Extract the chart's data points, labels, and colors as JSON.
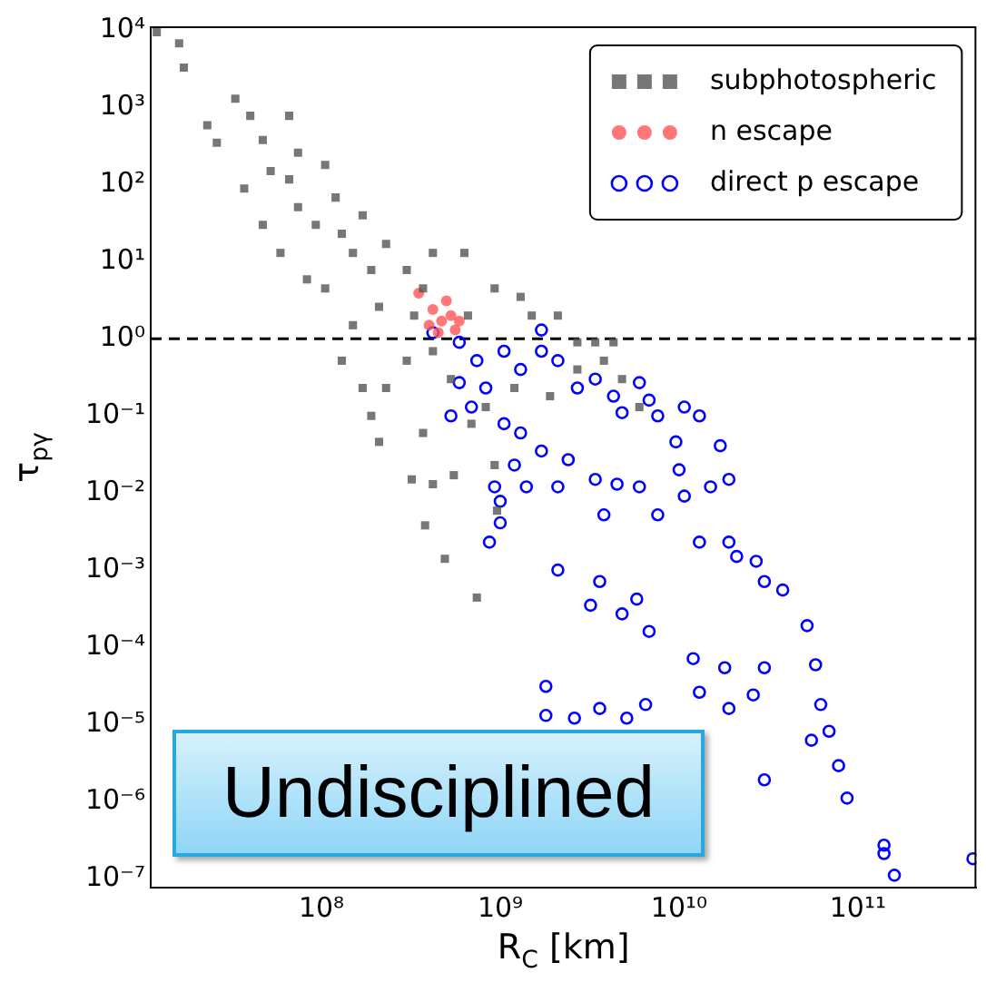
{
  "chart_data": {
    "type": "scatter",
    "xlabel": "R$_{C}$ [km]",
    "ylabel": "τ$_{pγ}$",
    "log": "xy",
    "legend": "top right",
    "grid": false,
    "xlim": [
      11100000.0,
      460000000000.0
    ],
    "ylim": [
      7.6e-08,
      11000.0
    ],
    "xticks": [
      {
        "value": 100000000.0,
        "label": "10⁸"
      },
      {
        "value": 1000000000.0,
        "label": "10⁹"
      },
      {
        "value": 10000000000.0,
        "label": "10¹⁰"
      },
      {
        "value": 100000000000.0,
        "label": "10¹¹"
      }
    ],
    "yticks": [
      {
        "value": 1e-07,
        "label": "10⁻⁷"
      },
      {
        "value": 1e-06,
        "label": "10⁻⁶"
      },
      {
        "value": 1e-05,
        "label": "10⁻⁵"
      },
      {
        "value": 0.0001,
        "label": "10⁻⁴"
      },
      {
        "value": 0.001,
        "label": "10⁻³"
      },
      {
        "value": 0.01,
        "label": "10⁻²"
      },
      {
        "value": 0.1,
        "label": "10⁻¹"
      },
      {
        "value": 1,
        "label": "10⁰"
      },
      {
        "value": 10,
        "label": "10¹"
      },
      {
        "value": 100,
        "label": "10²"
      },
      {
        "value": 1000,
        "label": "10³"
      },
      {
        "value": 10000,
        "label": "10⁴"
      }
    ],
    "ref_lines": [
      {
        "axis": "y",
        "value": 1,
        "color": "#000000",
        "line_style": "dashed"
      }
    ],
    "annotations": [
      "Undisciplined"
    ],
    "series": [
      {
        "name": "subphotospheric",
        "color": "#555555",
        "marker": "square",
        "x": [
          12000000.0,
          16000000.0,
          17000000.0,
          23000000.0,
          33000000.0,
          40000000.0,
          47000000.0,
          37000000.0,
          52000000.0,
          66000000.0,
          47000000.0,
          59000000.0,
          74000000.0,
          93000000.0,
          120000000.0,
          130000000.0,
          170000000.0,
          83000000.0,
          105000000.0,
          150000000.0,
          190000000.0,
          230000000.0,
          300000000.0,
          370000000.0,
          210000000.0,
          150000000.0,
          330000000.0,
          130000000.0,
          170000000.0,
          190000000.0,
          300000000.0,
          230000000.0,
          420000000.0,
          530000000.0,
          370000000.0,
          210000000.0,
          320000000.0,
          420000000.0,
          550000000.0,
          380000000.0,
          490000000.0,
          740000000.0,
          960000000.0,
          930000000.0,
          690000000.0,
          930000000.0,
          660000000.0,
          1300000000.0,
          1500000000.0,
          2100000000.0,
          2700000000.0,
          3400000000.0,
          4300000000.0,
          3800000000.0,
          4800000000.0,
          2700000000.0,
          1900000000.0,
          1200000000.0,
          830000000.0,
          6000000000.0,
          630000000.0,
          420000000.0,
          74000000.0,
          26000000.0,
          66000000.0,
          105000000.0
        ],
        "values": [
          9500.0,
          6800.0,
          3300.0,
          590,
          1300,
          780,
          380,
          89,
          150,
          117,
          30,
          13,
          51,
          30,
          68,
          23,
          40,
          5.9,
          4.5,
          13,
          7.8,
          17,
          7.8,
          4.5,
          2.6,
          1.5,
          2,
          0.52,
          0.23,
          0.1,
          0.52,
          0.23,
          0.69,
          0.3,
          0.06,
          0.046,
          0.015,
          0.013,
          0.017,
          0.0038,
          0.0014,
          0.00044,
          0.0059,
          0.023,
          0.079,
          4.5,
          2,
          3.5,
          2,
          2,
          0.9,
          0.9,
          0.9,
          0.52,
          0.3,
          0.4,
          0.18,
          0.23,
          0.13,
          0.13,
          13,
          13,
          260,
          350,
          780,
          180
        ]
      },
      {
        "name": "n escape",
        "color": "#ff5555",
        "marker": "circle",
        "x": [
          350000000.0,
          420000000.0,
          470000000.0,
          530000000.0,
          400000000.0,
          500000000.0,
          590000000.0,
          450000000.0,
          560000000.0
        ],
        "values": [
          3.9,
          2.4,
          1.7,
          2,
          1.5,
          3.1,
          1.7,
          1.2,
          1.3
        ]
      },
      {
        "name": "direct p escape",
        "color": "#0000ff",
        "marker": "circle",
        "x": [
          420000000.0,
          590000000.0,
          740000000.0,
          590000000.0,
          690000000.0,
          530000000.0,
          830000000.0,
          1050000000.0,
          1300000000.0,
          1700000000.0,
          2100000000.0,
          2700000000.0,
          3400000000.0,
          4300000000.0,
          4800000000.0,
          6000000000.0,
          6800000000.0,
          7600000000.0,
          9600000000.0,
          10700000000.0,
          13000000000.0,
          17000000000.0,
          10000000000.0,
          15000000000.0,
          19000000000.0,
          1050000000.0,
          1300000000.0,
          1700000000.0,
          1200000000.0,
          930000000.0,
          1000000000.0,
          1000000000.0,
          870000000.0,
          1400000000.0,
          2100000000.0,
          2400000000.0,
          3400000000.0,
          4500000000.0,
          3800000000.0,
          6000000000.0,
          7600000000.0,
          10700000000.0,
          13000000000.0,
          19000000000.0,
          21000000000.0,
          27000000000.0,
          30000000000.0,
          38000000000.0,
          2100000000.0,
          3600000000.0,
          3200000000.0,
          4800000000.0,
          6800000000.0,
          12000000000.0,
          18000000000.0,
          52000000000.0,
          58000000000.0,
          62000000000.0,
          69000000000.0,
          55000000000.0,
          78000000000.0,
          30000000000.0,
          26000000000.0,
          19000000000.0,
          13000000000.0,
          6500000000.0,
          5100000000.0,
          3600000000.0,
          2600000000.0,
          1800000000.0,
          1800000000.0,
          30000000000.0,
          87000000000.0,
          140000000000.0,
          140000000000.0,
          160000000000.0,
          440000000000.0,
          1700000000.0,
          5800000000.0
        ],
        "values": [
          1.2,
          0.9,
          0.52,
          0.27,
          0.13,
          0.1,
          0.23,
          0.69,
          0.4,
          0.69,
          0.52,
          0.23,
          0.3,
          0.18,
          0.11,
          0.27,
          0.16,
          0.1,
          0.046,
          0.13,
          0.1,
          0.041,
          0.02,
          0.012,
          0.015,
          0.079,
          0.06,
          0.035,
          0.023,
          0.012,
          0.0078,
          0.0041,
          0.0023,
          0.012,
          0.012,
          0.027,
          0.015,
          0.013,
          0.0052,
          0.012,
          0.0052,
          0.0091,
          0.0023,
          0.0023,
          0.0015,
          0.0013,
          0.00071,
          0.00055,
          0.001,
          0.00071,
          0.00035,
          0.00027,
          0.00016,
          7.1e-05,
          5.4e-05,
          0.00019,
          5.9e-05,
          1.8e-05,
          8.1e-06,
          6.2e-06,
          2.9e-06,
          1.9e-06,
          2.4e-05,
          1.6e-05,
          2.6e-05,
          1.8e-05,
          1.2e-05,
          1.6e-05,
          1.2e-05,
          3.1e-05,
          1.3e-05,
          5.4e-05,
          1.1e-06,
          2.7e-07,
          2.1e-07,
          1.1e-07,
          1.8e-07,
          1.3,
          0.00042
        ]
      }
    ]
  }
}
